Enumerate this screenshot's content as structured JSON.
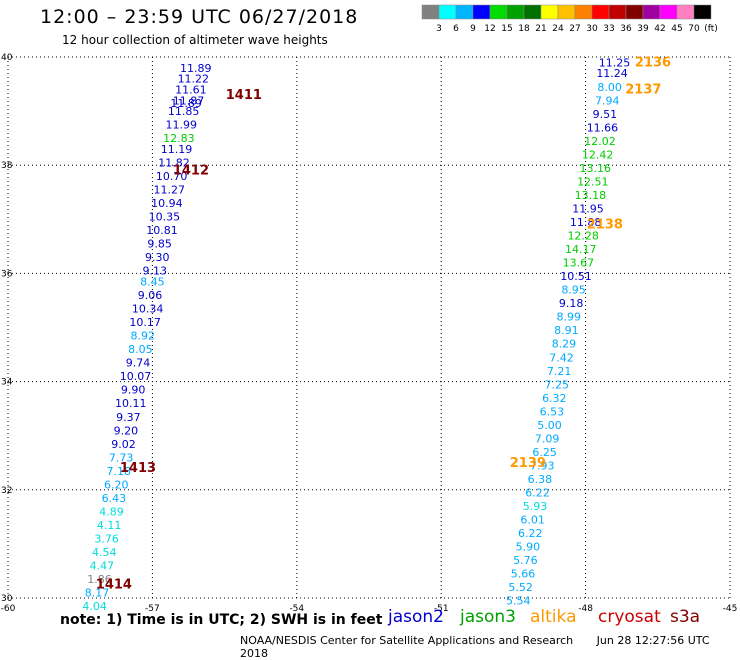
{
  "title": "12:00 – 23:59 UTC 06/27/2018",
  "subtitle": "12 hour collection of altimeter wave heights",
  "colorbar": {
    "colors": [
      "#808080",
      "#00ffff",
      "#00b4ff",
      "#0000ff",
      "#00dc00",
      "#00a000",
      "#007000",
      "#ffff00",
      "#ffc000",
      "#ff8000",
      "#ff0000",
      "#c00000",
      "#800000",
      "#a000a0",
      "#ff00ff",
      "#ff80c0",
      "#000000"
    ],
    "labels": [
      "3",
      "6",
      "9",
      "12",
      "15",
      "18",
      "21",
      "24",
      "27",
      "30",
      "33",
      "36",
      "39",
      "42",
      "45",
      "70",
      "(ft)"
    ]
  },
  "footer": {
    "note": "note:  1) Time is in UTC;  2) SWH is in feet",
    "credit": "NOAA/NESDIS Center for Satellite Applications and Research",
    "timestamp": "Jun 28 12:27:56 UTC 2018",
    "satellites": [
      {
        "name": "jason2",
        "color": "#0000cc"
      },
      {
        "name": "jason3",
        "color": "#00a000"
      },
      {
        "name": "altika",
        "color": "#ff9900"
      },
      {
        "name": "cryosat",
        "color": "#cc0000"
      },
      {
        "name": "s3a",
        "color": "#800000"
      }
    ]
  },
  "chart_data": {
    "type": "scatter",
    "xlim": [
      -60,
      -45
    ],
    "ylim": [
      30,
      40
    ],
    "xticks": [
      "-60",
      "-57",
      "-54",
      "-51",
      "-48",
      "-45"
    ],
    "yticks": [
      "30",
      "32",
      "34",
      "36",
      "38",
      "40"
    ],
    "grid": true,
    "tracks": [
      {
        "satellite": "cryosat",
        "labels": [
          {
            "text": "1411",
            "lon": -55.1,
            "lat": 39.3
          },
          {
            "text": "1412",
            "lon": -56.2,
            "lat": 37.9
          },
          {
            "text": "1413",
            "lon": -57.3,
            "lat": 32.4
          },
          {
            "text": "1414",
            "lon": -57.8,
            "lat": 30.25
          }
        ],
        "points": [
          {
            "lon": -56.1,
            "lat": 39.8,
            "v": "11.89",
            "c": "#0000cc"
          },
          {
            "lon": -56.15,
            "lat": 39.6,
            "v": "11.22",
            "c": "#0000cc"
          },
          {
            "lon": -56.2,
            "lat": 39.4,
            "v": "11.61",
            "c": "#0000cc"
          },
          {
            "lon": -56.25,
            "lat": 39.2,
            "v": "11.87",
            "c": "#0000cc"
          },
          {
            "lon": -56.3,
            "lat": 39.15,
            "v": "11.89",
            "c": "#0000cc"
          },
          {
            "lon": -56.35,
            "lat": 39.0,
            "v": "11.85",
            "c": "#0000cc"
          },
          {
            "lon": -56.4,
            "lat": 38.75,
            "v": "11.99",
            "c": "#0000cc"
          },
          {
            "lon": -56.45,
            "lat": 38.5,
            "v": "12.83",
            "c": "#00cc00"
          },
          {
            "lon": -56.5,
            "lat": 38.3,
            "v": "11.19",
            "c": "#0000cc"
          },
          {
            "lon": -56.55,
            "lat": 38.05,
            "v": "11.82",
            "c": "#0000cc"
          },
          {
            "lon": -56.6,
            "lat": 37.8,
            "v": "10.70",
            "c": "#0000cc"
          },
          {
            "lon": -56.65,
            "lat": 37.55,
            "v": "11.27",
            "c": "#0000cc"
          },
          {
            "lon": -56.7,
            "lat": 37.3,
            "v": "10.94",
            "c": "#0000cc"
          },
          {
            "lon": -56.75,
            "lat": 37.05,
            "v": "10.35",
            "c": "#0000cc"
          },
          {
            "lon": -56.8,
            "lat": 36.8,
            "v": "10.81",
            "c": "#0000cc"
          },
          {
            "lon": -56.85,
            "lat": 36.55,
            "v": "9.85",
            "c": "#0000cc"
          },
          {
            "lon": -56.9,
            "lat": 36.3,
            "v": "9.30",
            "c": "#0000cc"
          },
          {
            "lon": -56.95,
            "lat": 36.05,
            "v": "9.13",
            "c": "#0000cc"
          },
          {
            "lon": -57.0,
            "lat": 35.85,
            "v": "8.45",
            "c": "#00aaff"
          },
          {
            "lon": -57.05,
            "lat": 35.6,
            "v": "9.06",
            "c": "#0000cc"
          },
          {
            "lon": -57.1,
            "lat": 35.35,
            "v": "10.34",
            "c": "#0000cc"
          },
          {
            "lon": -57.15,
            "lat": 35.1,
            "v": "10.17",
            "c": "#0000cc"
          },
          {
            "lon": -57.2,
            "lat": 34.85,
            "v": "8.92",
            "c": "#00aaff"
          },
          {
            "lon": -57.25,
            "lat": 34.6,
            "v": "8.05",
            "c": "#00aaff"
          },
          {
            "lon": -57.3,
            "lat": 34.35,
            "v": "9.74",
            "c": "#0000cc"
          },
          {
            "lon": -57.35,
            "lat": 34.1,
            "v": "10.07",
            "c": "#0000cc"
          },
          {
            "lon": -57.4,
            "lat": 33.85,
            "v": "9.90",
            "c": "#0000cc"
          },
          {
            "lon": -57.45,
            "lat": 33.6,
            "v": "10.11",
            "c": "#0000cc"
          },
          {
            "lon": -57.5,
            "lat": 33.35,
            "v": "9.37",
            "c": "#0000cc"
          },
          {
            "lon": -57.55,
            "lat": 33.1,
            "v": "9.20",
            "c": "#0000cc"
          },
          {
            "lon": -57.6,
            "lat": 32.85,
            "v": "9.02",
            "c": "#0000cc"
          },
          {
            "lon": -57.65,
            "lat": 32.6,
            "v": "7.73",
            "c": "#00aaff"
          },
          {
            "lon": -57.7,
            "lat": 32.35,
            "v": "7.18",
            "c": "#00aaff"
          },
          {
            "lon": -57.75,
            "lat": 32.1,
            "v": "6.20",
            "c": "#00aaff"
          },
          {
            "lon": -57.8,
            "lat": 31.85,
            "v": "6.43",
            "c": "#00aaff"
          },
          {
            "lon": -57.85,
            "lat": 31.6,
            "v": "4.89",
            "c": "#00dddd"
          },
          {
            "lon": -57.9,
            "lat": 31.35,
            "v": "4.11",
            "c": "#00dddd"
          },
          {
            "lon": -57.95,
            "lat": 31.1,
            "v": "3.76",
            "c": "#00dddd"
          },
          {
            "lon": -58.0,
            "lat": 30.85,
            "v": "4.54",
            "c": "#00dddd"
          },
          {
            "lon": -58.05,
            "lat": 30.6,
            "v": "4.47",
            "c": "#00dddd"
          },
          {
            "lon": -58.1,
            "lat": 30.35,
            "v": "1.86",
            "c": "#808080"
          },
          {
            "lon": -58.15,
            "lat": 30.1,
            "v": "8.17",
            "c": "#00aaff"
          },
          {
            "lon": -58.2,
            "lat": 29.85,
            "v": "4.04",
            "c": "#00dddd"
          }
        ]
      },
      {
        "satellite": "altika",
        "labels": [
          {
            "text": "2136",
            "lon": -46.6,
            "lat": 39.9
          },
          {
            "text": "2137",
            "lon": -46.8,
            "lat": 39.4
          },
          {
            "text": "2138",
            "lon": -47.6,
            "lat": 36.9
          },
          {
            "text": "2139",
            "lon": -49.2,
            "lat": 32.5
          }
        ],
        "points": [
          {
            "lon": -47.4,
            "lat": 39.9,
            "v": "11.25",
            "c": "#0000cc"
          },
          {
            "lon": -47.45,
            "lat": 39.7,
            "v": "11.24",
            "c": "#0000cc"
          },
          {
            "lon": -47.5,
            "lat": 39.45,
            "v": "8.00",
            "c": "#00aaff"
          },
          {
            "lon": -47.55,
            "lat": 39.2,
            "v": "7.94",
            "c": "#00aaff"
          },
          {
            "lon": -47.6,
            "lat": 38.95,
            "v": "9.51",
            "c": "#0000cc"
          },
          {
            "lon": -47.65,
            "lat": 38.7,
            "v": "11.66",
            "c": "#0000cc"
          },
          {
            "lon": -47.7,
            "lat": 38.45,
            "v": "12.02",
            "c": "#00cc00"
          },
          {
            "lon": -47.75,
            "lat": 38.2,
            "v": "12.42",
            "c": "#00cc00"
          },
          {
            "lon": -47.8,
            "lat": 37.95,
            "v": "13.16",
            "c": "#00cc00"
          },
          {
            "lon": -47.85,
            "lat": 37.7,
            "v": "12.51",
            "c": "#00cc00"
          },
          {
            "lon": -47.9,
            "lat": 37.45,
            "v": "13.18",
            "c": "#00cc00"
          },
          {
            "lon": -47.95,
            "lat": 37.2,
            "v": "11.95",
            "c": "#0000cc"
          },
          {
            "lon": -48.0,
            "lat": 36.95,
            "v": "11.88",
            "c": "#0000cc"
          },
          {
            "lon": -48.05,
            "lat": 36.7,
            "v": "12.28",
            "c": "#00cc00"
          },
          {
            "lon": -48.1,
            "lat": 36.45,
            "v": "14.17",
            "c": "#00cc00"
          },
          {
            "lon": -48.15,
            "lat": 36.2,
            "v": "13.67",
            "c": "#00cc00"
          },
          {
            "lon": -48.2,
            "lat": 35.95,
            "v": "10.51",
            "c": "#0000cc"
          },
          {
            "lon": -48.25,
            "lat": 35.7,
            "v": "8.95",
            "c": "#00aaff"
          },
          {
            "lon": -48.3,
            "lat": 35.45,
            "v": "9.18",
            "c": "#0000cc"
          },
          {
            "lon": -48.35,
            "lat": 35.2,
            "v": "8.99",
            "c": "#00aaff"
          },
          {
            "lon": -48.4,
            "lat": 34.95,
            "v": "8.91",
            "c": "#00aaff"
          },
          {
            "lon": -48.45,
            "lat": 34.7,
            "v": "8.29",
            "c": "#00aaff"
          },
          {
            "lon": -48.5,
            "lat": 34.45,
            "v": "7.42",
            "c": "#00aaff"
          },
          {
            "lon": -48.55,
            "lat": 34.2,
            "v": "7.21",
            "c": "#00aaff"
          },
          {
            "lon": -48.6,
            "lat": 33.95,
            "v": "7.25",
            "c": "#00aaff"
          },
          {
            "lon": -48.65,
            "lat": 33.7,
            "v": "6.32",
            "c": "#00aaff"
          },
          {
            "lon": -48.7,
            "lat": 33.45,
            "v": "6.53",
            "c": "#00aaff"
          },
          {
            "lon": -48.75,
            "lat": 33.2,
            "v": "5.00",
            "c": "#00aaff"
          },
          {
            "lon": -48.8,
            "lat": 32.95,
            "v": "7.09",
            "c": "#00aaff"
          },
          {
            "lon": -48.85,
            "lat": 32.7,
            "v": "6.25",
            "c": "#00aaff"
          },
          {
            "lon": -48.9,
            "lat": 32.45,
            "v": "7.93",
            "c": "#00aaff"
          },
          {
            "lon": -48.95,
            "lat": 32.2,
            "v": "6.38",
            "c": "#00aaff"
          },
          {
            "lon": -49.0,
            "lat": 31.95,
            "v": "6.22",
            "c": "#00aaff"
          },
          {
            "lon": -49.05,
            "lat": 31.7,
            "v": "5.93",
            "c": "#00dddd"
          },
          {
            "lon": -49.1,
            "lat": 31.45,
            "v": "6.01",
            "c": "#00aaff"
          },
          {
            "lon": -49.15,
            "lat": 31.2,
            "v": "6.22",
            "c": "#00aaff"
          },
          {
            "lon": -49.2,
            "lat": 30.95,
            "v": "5.90",
            "c": "#00aaff"
          },
          {
            "lon": -49.25,
            "lat": 30.7,
            "v": "5.76",
            "c": "#00aaff"
          },
          {
            "lon": -49.3,
            "lat": 30.45,
            "v": "5.66",
            "c": "#00aaff"
          },
          {
            "lon": -49.35,
            "lat": 30.2,
            "v": "5.52",
            "c": "#00aaff"
          },
          {
            "lon": -49.4,
            "lat": 29.95,
            "v": "5.54",
            "c": "#00aaff"
          }
        ]
      }
    ]
  }
}
